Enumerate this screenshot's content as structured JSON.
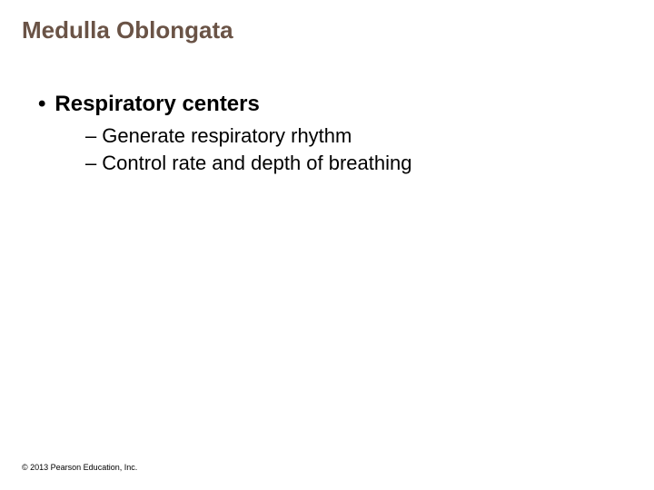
{
  "title": {
    "text": "Medulla Oblongata",
    "color": "#6a5346",
    "fontsize": 26
  },
  "bullet_l1": {
    "marker": "•",
    "text": "Respiratory centers",
    "color": "#000000",
    "fontsize": 24
  },
  "sub_bullets": {
    "marker": "–",
    "items": [
      "Generate respiratory rhythm",
      "Control rate and depth of breathing"
    ],
    "color": "#000000",
    "fontsize": 22
  },
  "copyright": {
    "text": "© 2013 Pearson Education, Inc.",
    "color": "#000000",
    "fontsize": 9
  },
  "background_color": "#ffffff"
}
